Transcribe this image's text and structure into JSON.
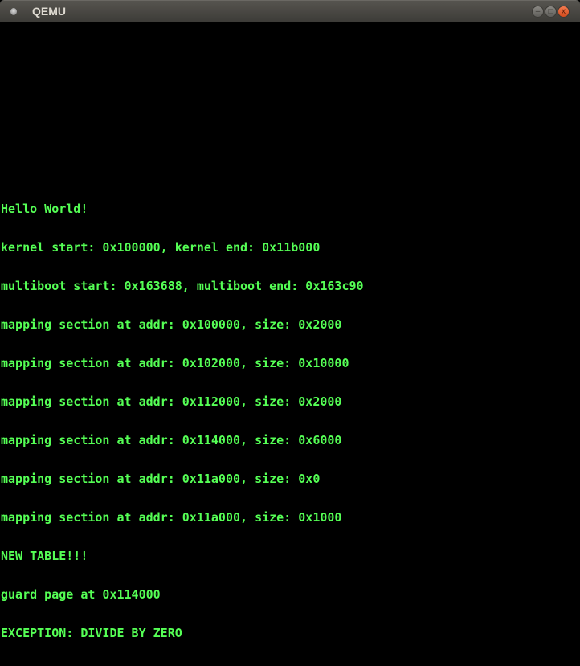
{
  "window": {
    "title": "QEMU",
    "buttons": {
      "minimize": "–",
      "maximize": "□",
      "close": "x"
    }
  },
  "console": {
    "color": "#55ff55",
    "lines": [
      "Hello World!",
      "kernel start: 0x100000, kernel end: 0x11b000",
      "multiboot start: 0x163688, multiboot end: 0x163c90",
      "mapping section at addr: 0x100000, size: 0x2000",
      "mapping section at addr: 0x102000, size: 0x10000",
      "mapping section at addr: 0x112000, size: 0x2000",
      "mapping section at addr: 0x114000, size: 0x6000",
      "mapping section at addr: 0x11a000, size: 0x0",
      "mapping section at addr: 0x11a000, size: 0x1000",
      "NEW TABLE!!!",
      "guard page at 0x114000",
      "EXCEPTION: DIVIDE BY ZERO"
    ]
  }
}
